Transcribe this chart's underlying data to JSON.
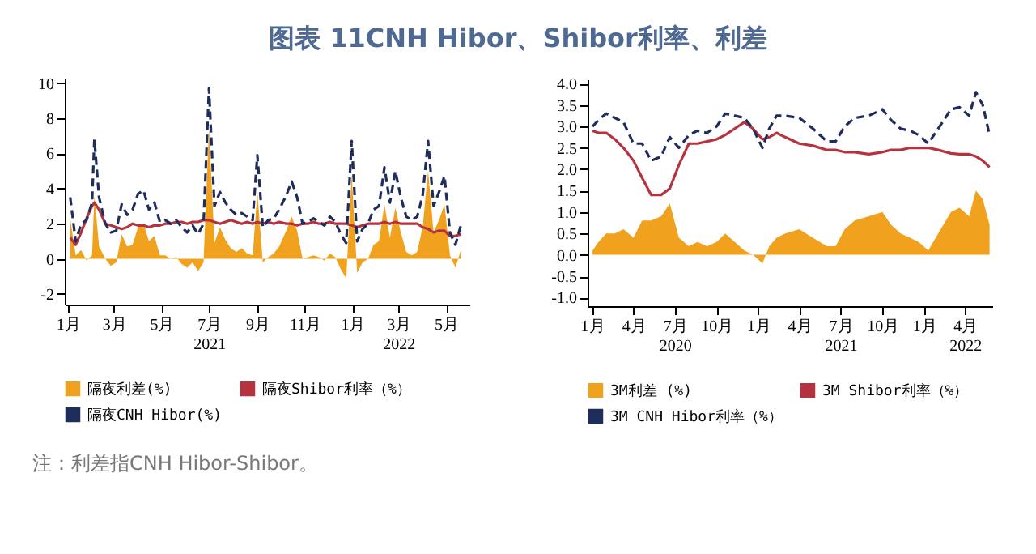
{
  "chart_data": [
    {
      "type": "line",
      "title": "图表 11CNH Hibor、Shibor利率、利差",
      "annotations": [
        "注：利差指CNH Hibor-Shibor。"
      ],
      "x": [
        "2021-01-04",
        "2021-01-11",
        "2021-01-18",
        "2021-01-25",
        "2021-02-01",
        "2021-02-04",
        "2021-02-10",
        "2021-02-18",
        "2021-02-25",
        "2021-03-04",
        "2021-03-11",
        "2021-03-18",
        "2021-03-25",
        "2021-04-01",
        "2021-04-08",
        "2021-04-15",
        "2021-04-22",
        "2021-04-29",
        "2021-05-06",
        "2021-05-13",
        "2021-05-20",
        "2021-05-27",
        "2021-06-03",
        "2021-06-10",
        "2021-06-17",
        "2021-06-24",
        "2021-07-01",
        "2021-07-08",
        "2021-07-15",
        "2021-07-22",
        "2021-07-29",
        "2021-08-05",
        "2021-08-12",
        "2021-08-19",
        "2021-08-26",
        "2021-09-01",
        "2021-09-08",
        "2021-09-15",
        "2021-09-22",
        "2021-09-29",
        "2021-10-08",
        "2021-10-15",
        "2021-10-22",
        "2021-10-29",
        "2021-11-05",
        "2021-11-12",
        "2021-11-19",
        "2021-11-26",
        "2021-12-03",
        "2021-12-10",
        "2021-12-17",
        "2021-12-24",
        "2021-12-31",
        "2022-01-07",
        "2022-01-14",
        "2022-01-21",
        "2022-01-28",
        "2022-02-04",
        "2022-02-11",
        "2022-02-18",
        "2022-02-25",
        "2022-03-04",
        "2022-03-11",
        "2022-03-18",
        "2022-03-25",
        "2022-04-01",
        "2022-04-08",
        "2022-04-15",
        "2022-04-22",
        "2022-04-29",
        "2022-05-06",
        "2022-05-13",
        "2022-05-20"
      ],
      "xlim": [
        "2020-12-28",
        "2022-05-31"
      ],
      "xticks": [
        {
          "value": "2021-01-01",
          "label": "1月"
        },
        {
          "value": "2021-03-01",
          "label": "3月"
        },
        {
          "value": "2021-05-01",
          "label": "5月"
        },
        {
          "value": "2021-07-01",
          "label": "7月\n2021"
        },
        {
          "value": "2021-09-01",
          "label": "9月"
        },
        {
          "value": "2021-11-01",
          "label": "11月"
        },
        {
          "value": "2022-01-01",
          "label": "1月"
        },
        {
          "value": "2022-03-01",
          "label": "3月\n2022"
        },
        {
          "value": "2022-05-01",
          "label": "5月"
        }
      ],
      "ylim": [
        -2.6,
        10.3
      ],
      "yticks": [
        -2,
        0,
        2,
        4,
        6,
        8,
        10
      ],
      "legend": "bottom",
      "series": [
        {
          "name": "隔夜利差(%)",
          "type": "area",
          "color": "#f0a21e",
          "values": [
            2.3,
            0.2,
            0.5,
            -0.1,
            0.2,
            3.6,
            0.7,
            0,
            -0.4,
            -0.2,
            1.4,
            0.7,
            0.8,
            1.8,
            2.0,
            1.0,
            1.3,
            0.2,
            0.2,
            0,
            0.1,
            -0.3,
            -0.5,
            -0.2,
            -0.7,
            -0.2,
            7.5,
            0.9,
            1.8,
            1.1,
            0.6,
            0.4,
            0.6,
            0.3,
            0.2,
            3.8,
            -0.2,
            0.1,
            0.3,
            0.7,
            1.6,
            2.4,
            1.6,
            0,
            0.1,
            0.2,
            0.1,
            -0.1,
            0.3,
            0.1,
            -0.6,
            -1.1,
            4.8,
            -0.8,
            -0.2,
            0,
            0.8,
            1.0,
            3.1,
            1.2,
            2.9,
            1.5,
            0.4,
            0.2,
            0.4,
            1.8,
            5.0,
            1.5,
            2.2,
            3.1,
            0.2,
            -0.5,
            0.5
          ]
        },
        {
          "name": "隔夜Shibor利率（%）",
          "type": "line",
          "color": "#b5333f",
          "line_style": "solid",
          "values": [
            1.2,
            0.8,
            1.5,
            2.3,
            3.0,
            3.2,
            2.8,
            2.0,
            1.9,
            1.8,
            1.7,
            1.8,
            2.0,
            1.9,
            1.9,
            1.8,
            1.9,
            1.9,
            2.0,
            2.0,
            2.1,
            2.1,
            2.0,
            2.1,
            2.1,
            2.2,
            2.2,
            2.1,
            2.0,
            2.1,
            2.2,
            2.1,
            2.0,
            2.1,
            2.0,
            2.1,
            2.0,
            2.1,
            2.0,
            2.1,
            2.0,
            2.0,
            1.9,
            2.0,
            2.0,
            2.1,
            2.0,
            2.0,
            2.1,
            2.0,
            2.0,
            2.0,
            1.9,
            1.8,
            1.9,
            2.0,
            2.0,
            2.0,
            2.1,
            2.0,
            2.1,
            2.0,
            2.0,
            2.0,
            2.0,
            1.8,
            1.7,
            1.5,
            1.6,
            1.6,
            1.3,
            1.3,
            1.4
          ]
        },
        {
          "name": "隔夜CNH Hibor(%)",
          "type": "line",
          "color": "#1f2d5c",
          "line_style": "dashed",
          "values": [
            3.5,
            1.0,
            2.0,
            2.2,
            3.2,
            6.8,
            3.5,
            2.0,
            1.5,
            1.6,
            3.1,
            2.5,
            2.8,
            3.7,
            3.9,
            2.8,
            3.2,
            2.1,
            2.2,
            2.0,
            2.2,
            1.8,
            1.5,
            1.9,
            1.4,
            2.0,
            9.7,
            3.0,
            3.8,
            3.2,
            2.8,
            2.5,
            2.6,
            2.4,
            2.2,
            5.9,
            1.8,
            2.2,
            2.3,
            2.8,
            3.6,
            4.4,
            3.5,
            2.0,
            2.1,
            2.3,
            2.1,
            1.9,
            2.4,
            2.1,
            1.4,
            0.9,
            6.7,
            1.0,
            1.7,
            2.0,
            2.8,
            3.0,
            5.2,
            3.2,
            5.0,
            3.5,
            2.4,
            2.2,
            2.4,
            3.6,
            6.7,
            3.0,
            3.8,
            4.7,
            1.5,
            0.8,
            1.9
          ]
        }
      ]
    },
    {
      "type": "line",
      "x": [
        "2020-01-02",
        "2020-01-15",
        "2020-02-01",
        "2020-02-20",
        "2020-03-10",
        "2020-04-01",
        "2020-04-20",
        "2020-05-10",
        "2020-06-01",
        "2020-06-20",
        "2020-07-10",
        "2020-08-01",
        "2020-08-20",
        "2020-09-10",
        "2020-10-01",
        "2020-10-20",
        "2020-11-10",
        "2020-12-01",
        "2020-12-20",
        "2021-01-10",
        "2021-01-25",
        "2021-02-10",
        "2021-03-01",
        "2021-04-01",
        "2021-05-01",
        "2021-06-01",
        "2021-06-20",
        "2021-07-10",
        "2021-08-01",
        "2021-09-01",
        "2021-10-01",
        "2021-10-20",
        "2021-11-10",
        "2021-12-01",
        "2021-12-20",
        "2022-01-10",
        "2022-02-01",
        "2022-03-01",
        "2022-03-20",
        "2022-04-10",
        "2022-04-25",
        "2022-05-10",
        "2022-05-25"
      ],
      "xlim": [
        "2019-12-22",
        "2022-05-31"
      ],
      "xticks": [
        {
          "value": "2020-01-01",
          "label": "1月"
        },
        {
          "value": "2020-04-01",
          "label": "4月"
        },
        {
          "value": "2020-07-01",
          "label": "7月\n2020"
        },
        {
          "value": "2020-10-01",
          "label": "10月"
        },
        {
          "value": "2021-01-01",
          "label": "1月"
        },
        {
          "value": "2021-04-01",
          "label": "4月"
        },
        {
          "value": "2021-07-01",
          "label": "7月\n2021"
        },
        {
          "value": "2021-10-01",
          "label": "10月"
        },
        {
          "value": "2022-01-01",
          "label": "1月"
        },
        {
          "value": "2022-04-01",
          "label": "4月\n2022"
        }
      ],
      "ylim": [
        -1.2,
        4.1
      ],
      "yticks": [
        {
          "value": -1,
          "label": "-1.0"
        },
        {
          "value": -0.5,
          "label": "-0.5"
        },
        {
          "value": 0,
          "label": "0.0"
        },
        {
          "value": 0.5,
          "label": "0.5"
        },
        {
          "value": 1,
          "label": "1.0"
        },
        {
          "value": 1.5,
          "label": "1.5"
        },
        {
          "value": 2,
          "label": "2.0"
        },
        {
          "value": 2.5,
          "label": "2.5"
        },
        {
          "value": 3,
          "label": "3.0"
        },
        {
          "value": 3.5,
          "label": "3.5"
        },
        {
          "value": 4,
          "label": "4.0"
        }
      ],
      "legend": "bottom",
      "series": [
        {
          "name": "3M利差 (%)",
          "type": "area",
          "color": "#f0a21e",
          "values": [
            0.1,
            0.3,
            0.5,
            0.5,
            0.6,
            0.4,
            0.8,
            0.8,
            0.9,
            1.2,
            0.4,
            0.2,
            0.3,
            0.2,
            0.3,
            0.5,
            0.3,
            0.1,
            0,
            -0.2,
            0.2,
            0.4,
            0.5,
            0.6,
            0.4,
            0.2,
            0.2,
            0.6,
            0.8,
            0.9,
            1.0,
            0.7,
            0.5,
            0.4,
            0.3,
            0.1,
            0.5,
            1.0,
            1.1,
            0.9,
            1.5,
            1.3,
            0.7
          ]
        },
        {
          "name": "3M Shibor利率（%）",
          "type": "line",
          "color": "#b5333f",
          "line_style": "solid",
          "values": [
            2.9,
            2.85,
            2.85,
            2.7,
            2.5,
            2.2,
            1.8,
            1.4,
            1.4,
            1.55,
            2.1,
            2.6,
            2.6,
            2.65,
            2.7,
            2.8,
            2.95,
            3.1,
            2.95,
            2.7,
            2.75,
            2.85,
            2.75,
            2.6,
            2.55,
            2.45,
            2.45,
            2.4,
            2.4,
            2.35,
            2.4,
            2.45,
            2.45,
            2.5,
            2.5,
            2.5,
            2.45,
            2.37,
            2.35,
            2.35,
            2.3,
            2.2,
            2.05
          ]
        },
        {
          "name": "3M CNH Hibor利率（%）",
          "type": "line",
          "color": "#1f2d5c",
          "line_style": "dashed",
          "values": [
            3.0,
            3.15,
            3.3,
            3.2,
            3.1,
            2.6,
            2.6,
            2.2,
            2.3,
            2.75,
            2.5,
            2.8,
            2.9,
            2.85,
            3.0,
            3.3,
            3.25,
            3.2,
            2.95,
            2.5,
            2.95,
            3.25,
            3.25,
            3.2,
            2.95,
            2.65,
            2.65,
            3.0,
            3.2,
            3.25,
            3.4,
            3.15,
            2.95,
            2.9,
            2.8,
            2.6,
            2.95,
            3.4,
            3.45,
            3.25,
            3.8,
            3.5,
            2.8
          ]
        }
      ]
    }
  ]
}
